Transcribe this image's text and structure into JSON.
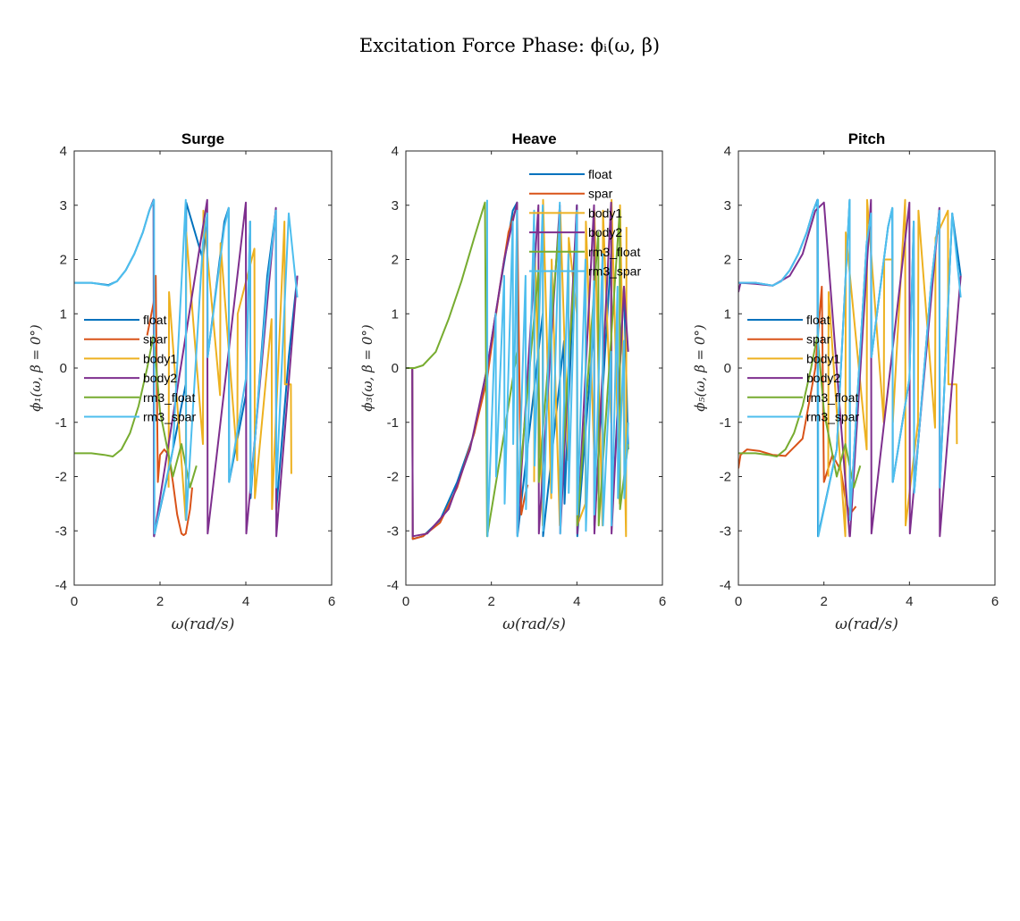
{
  "title": "Excitation Force Phase: ϕᵢ(ω, β)",
  "legend_entries": [
    "float",
    "spar",
    "body1",
    "body2",
    "rm3_float",
    "rm3_spar"
  ],
  "colors": {
    "float": "#0072BD",
    "spar": "#D95319",
    "body1": "#EDB120",
    "body2": "#7E2F8E",
    "rm3_float": "#77AC30",
    "rm3_spar": "#4DBEEE"
  },
  "chart_data": [
    {
      "type": "line",
      "title": "Surge",
      "xlabel": "ω(rad/s)",
      "ylabel": "ϕ₁(ω, β = 0°)",
      "xlim": [
        0,
        6
      ],
      "ylim": [
        -4,
        4
      ],
      "xticks": [
        "0",
        "2",
        "4",
        "6"
      ],
      "yticks": [
        "4",
        "3",
        "2",
        "1",
        "0",
        "-1",
        "-2",
        "-3",
        "-4"
      ],
      "legend_position": "west",
      "series": [
        {
          "name": "float",
          "x": [
            0,
            0.4,
            0.8,
            1.0,
            1.2,
            1.4,
            1.6,
            1.75,
            1.85,
            1.86,
            2.2,
            2.6,
            2.61,
            3.0,
            3.1,
            3.11,
            3.5,
            3.6,
            3.61,
            4.0,
            4.1,
            4.11,
            4.5,
            4.7,
            4.71,
            5.0,
            5.2
          ],
          "y": [
            1.57,
            1.57,
            1.53,
            1.6,
            1.8,
            2.1,
            2.5,
            2.9,
            3.1,
            -3.1,
            -1.9,
            -0.3,
            3.05,
            2.0,
            2.85,
            0.2,
            2.7,
            2.95,
            -2.1,
            -0.5,
            2.7,
            -2.4,
            1.7,
            2.9,
            -2.6,
            0.2,
            1.7
          ]
        },
        {
          "name": "spar",
          "x": [
            1.7,
            1.85,
            1.9,
            1.95,
            2.0,
            2.1,
            2.2,
            2.3,
            2.4,
            2.5,
            2.55,
            2.6,
            2.7,
            2.75
          ],
          "y": [
            0.6,
            1.2,
            1.7,
            -2.1,
            -1.6,
            -1.5,
            -1.6,
            -2.1,
            -2.7,
            -3.05,
            -3.08,
            -3.05,
            -2.6,
            -2.2
          ]
        },
        {
          "name": "body1",
          "x": [
            2.2,
            2.21,
            2.6,
            2.61,
            3.0,
            3.01,
            3.4,
            3.41,
            3.8,
            3.81,
            4.2,
            4.21,
            4.6,
            4.61,
            4.9,
            4.91,
            5.05,
            5.06
          ],
          "y": [
            -2.2,
            1.4,
            -2.8,
            2.5,
            -1.4,
            2.9,
            -0.5,
            2.3,
            -1.7,
            1.0,
            2.2,
            -2.4,
            0.9,
            -2.6,
            2.7,
            -0.3,
            -0.3,
            -1.95
          ]
        },
        {
          "name": "body2",
          "x": [
            1.8,
            1.85,
            1.86,
            3.1,
            3.11,
            4.0,
            4.01,
            4.7,
            4.71,
            5.2
          ],
          "y": [
            3.0,
            3.1,
            -3.1,
            3.1,
            -3.05,
            3.05,
            -3.05,
            2.95,
            -3.1,
            1.7
          ]
        },
        {
          "name": "rm3_float",
          "x": [
            0,
            0.4,
            0.7,
            0.9,
            1.1,
            1.3,
            1.5,
            1.7,
            1.85,
            2.0,
            2.3,
            2.5,
            2.7,
            2.85
          ],
          "y": [
            -1.57,
            -1.57,
            -1.6,
            -1.63,
            -1.5,
            -1.2,
            -0.7,
            0.0,
            0.6,
            -0.8,
            -2.0,
            -1.4,
            -2.2,
            -1.8
          ]
        },
        {
          "name": "rm3_spar",
          "x": [
            0,
            0.4,
            0.8,
            1.0,
            1.2,
            1.4,
            1.6,
            1.75,
            1.86,
            1.87,
            2.3,
            2.6,
            2.61,
            3.0,
            3.1,
            3.11,
            3.5,
            3.6,
            3.61,
            4.0,
            4.1,
            4.11,
            4.5,
            4.7,
            4.71,
            5.0,
            5.2
          ],
          "y": [
            1.57,
            1.57,
            1.52,
            1.6,
            1.8,
            2.1,
            2.5,
            2.9,
            3.1,
            -3.05,
            -1.5,
            3.1,
            -2.8,
            2.3,
            2.85,
            0.2,
            2.6,
            2.95,
            -2.1,
            -0.2,
            2.7,
            -2.3,
            1.5,
            2.9,
            -2.2,
            2.85,
            1.3
          ]
        }
      ]
    },
    {
      "type": "line",
      "title": "Heave",
      "xlabel": "ω(rad/s)",
      "ylabel": "ϕ₃(ω, β = 0°)",
      "xlim": [
        0,
        6
      ],
      "ylim": [
        -4,
        4
      ],
      "xticks": [
        "0",
        "2",
        "4",
        "6"
      ],
      "yticks": [
        "4",
        "3",
        "2",
        "1",
        "0",
        "-1",
        "-2",
        "-3",
        "-4"
      ],
      "legend_position": "north",
      "series": [
        {
          "name": "float",
          "x": [
            0,
            0.15,
            0.16,
            0.4,
            0.8,
            1.2,
            1.6,
            1.9,
            2.1,
            2.5,
            2.6,
            2.61,
            3.2,
            3.21,
            3.7,
            3.71,
            4.0,
            4.01,
            4.4,
            4.41,
            4.8,
            4.81,
            5.1,
            5.2
          ],
          "y": [
            0,
            0,
            -3.15,
            -3.1,
            -2.8,
            -2.1,
            -1.2,
            0.0,
            1.0,
            2.9,
            3.05,
            -3.1,
            1.0,
            -3.1,
            0.5,
            -2.5,
            3.0,
            -3.1,
            0.8,
            -2.9,
            2.1,
            -2.9,
            1.5,
            -1.5
          ]
        },
        {
          "name": "spar",
          "x": [
            0,
            0.15,
            0.16,
            0.4,
            0.8,
            1.2,
            1.6,
            1.9,
            2.2,
            2.4,
            2.6,
            2.7,
            2.8,
            2.85
          ],
          "y": [
            0,
            0,
            -3.15,
            -3.1,
            -2.85,
            -2.2,
            -1.2,
            -0.2,
            1.5,
            2.5,
            3.0,
            -2.7,
            -2.3,
            -2.15
          ]
        },
        {
          "name": "body1",
          "x": [
            3.0,
            3.01,
            3.2,
            3.21,
            3.4,
            3.41,
            3.6,
            3.61,
            3.8,
            3.81,
            4.0,
            4.01,
            4.2,
            4.21,
            4.4,
            4.41,
            4.6,
            4.61,
            4.8,
            4.81,
            5.0,
            5.01,
            5.15,
            5.16
          ],
          "y": [
            -2.1,
            2.3,
            -2.9,
            3.1,
            -2.4,
            2.0,
            -2.9,
            2.9,
            -1.7,
            2.4,
            1.0,
            -2.9,
            -2.5,
            2.7,
            -1.5,
            2.9,
            -2.9,
            2.9,
            -1.0,
            3.1,
            -2.5,
            3.0,
            -3.1,
            2.6
          ]
        },
        {
          "name": "body2",
          "x": [
            0,
            0.15,
            0.16,
            0.5,
            1.0,
            1.5,
            1.9,
            2.3,
            2.6,
            2.61,
            3.1,
            3.11,
            3.6,
            3.61,
            4.0,
            4.01,
            4.4,
            4.41,
            4.8,
            4.81,
            5.1,
            5.2
          ],
          "y": [
            0,
            0,
            -3.1,
            -3.05,
            -2.6,
            -1.5,
            0.0,
            2.0,
            3.05,
            -3.05,
            3.0,
            -3.05,
            3.0,
            -3.05,
            3.0,
            -3.05,
            3.0,
            -3.05,
            3.05,
            -3.05,
            1.5,
            0.3
          ]
        },
        {
          "name": "rm3_float",
          "x": [
            0,
            0.2,
            0.4,
            0.7,
            1.0,
            1.3,
            1.6,
            1.85,
            1.9,
            2.3,
            2.6,
            2.61,
            3.1,
            3.11,
            3.6,
            3.61,
            4.0,
            4.01,
            4.5,
            4.51,
            5.0,
            5.01,
            5.2
          ],
          "y": [
            0,
            0,
            0.05,
            0.3,
            0.9,
            1.6,
            2.4,
            3.05,
            -3.1,
            -1.2,
            0.3,
            -2.5,
            1.8,
            -2.1,
            2.8,
            -2.4,
            2.5,
            -2.9,
            2.5,
            -2.9,
            2.9,
            -2.6,
            -1.4
          ]
        },
        {
          "name": "rm3_spar",
          "x": [
            1.9,
            1.91,
            2.1,
            2.11,
            2.3,
            2.31,
            2.5,
            2.51,
            2.6,
            2.61,
            2.8,
            2.81,
            3.0,
            3.01,
            3.2,
            3.21,
            3.4,
            3.41,
            3.6,
            3.61,
            3.8,
            3.81,
            4.0,
            4.01,
            4.2,
            4.21,
            4.4,
            4.41,
            4.6,
            4.61,
            4.8,
            4.81,
            4.95,
            4.96,
            5.1,
            5.11,
            5.2
          ],
          "y": [
            3.1,
            -3.1,
            1.0,
            -2.0,
            1.7,
            -2.5,
            2.7,
            -1.4,
            2.9,
            -3.1,
            1.7,
            -2.6,
            2.9,
            -1.8,
            3.0,
            -3.0,
            1.8,
            -2.3,
            3.05,
            -3.05,
            2.1,
            -2.3,
            2.9,
            -2.7,
            2.0,
            -3.0,
            1.6,
            -2.7,
            2.1,
            -2.9,
            0.3,
            -2.9,
            1.5,
            -2.4,
            0.5,
            -2.4,
            -1.0
          ]
        }
      ]
    },
    {
      "type": "line",
      "title": "Pitch",
      "xlabel": "ω(rad/s)",
      "ylabel": "ϕ₅(ω, β = 0°)",
      "xlim": [
        0,
        6
      ],
      "ylim": [
        -4,
        4
      ],
      "xticks": [
        "0",
        "2",
        "4",
        "6"
      ],
      "yticks": [
        "4",
        "3",
        "2",
        "1",
        "0",
        "-1",
        "-2",
        "-3",
        "-4"
      ],
      "legend_position": "west",
      "series": [
        {
          "name": "float",
          "x": [
            0,
            0.4,
            0.8,
            1.0,
            1.2,
            1.4,
            1.6,
            1.75,
            1.85,
            1.86,
            2.3,
            2.6,
            2.61,
            3.0,
            3.1,
            3.11,
            3.5,
            3.6,
            3.61,
            4.0,
            4.1,
            4.11,
            4.5,
            4.7,
            4.71,
            5.0,
            5.2
          ],
          "y": [
            1.57,
            1.57,
            1.52,
            1.6,
            1.8,
            2.1,
            2.5,
            2.9,
            3.1,
            -3.1,
            -1.5,
            3.1,
            -2.8,
            2.3,
            2.85,
            0.2,
            2.6,
            2.95,
            -2.1,
            -0.2,
            2.7,
            -2.3,
            1.5,
            2.9,
            -2.2,
            2.85,
            1.7
          ]
        },
        {
          "name": "spar",
          "x": [
            0,
            0.05,
            0.2,
            0.5,
            0.8,
            1.1,
            1.5,
            1.8,
            1.95,
            2.0,
            2.2,
            2.4,
            2.5,
            2.6,
            2.75
          ],
          "y": [
            -1.85,
            -1.6,
            -1.5,
            -1.53,
            -1.6,
            -1.62,
            -1.3,
            0.0,
            1.5,
            -2.1,
            -1.6,
            -1.9,
            -2.4,
            -2.7,
            -2.55
          ]
        },
        {
          "name": "body1",
          "x": [
            2.1,
            2.11,
            2.5,
            2.51,
            3.0,
            3.01,
            3.4,
            3.41,
            3.6,
            3.61,
            3.9,
            3.91,
            4.2,
            4.21,
            4.6,
            4.61,
            4.9,
            4.91,
            5.1,
            5.11
          ],
          "y": [
            -2.0,
            1.4,
            -3.1,
            2.5,
            -1.5,
            3.1,
            -1.0,
            2.0,
            2.0,
            -1.0,
            3.1,
            -2.9,
            -1.0,
            2.9,
            -1.1,
            2.4,
            2.9,
            -0.3,
            -0.3,
            -1.4
          ]
        },
        {
          "name": "body2",
          "x": [
            0,
            0.05,
            0.4,
            0.8,
            1.2,
            1.5,
            1.8,
            2.0,
            2.6,
            2.61,
            3.1,
            3.11,
            4.0,
            4.01,
            4.7,
            4.71,
            5.2
          ],
          "y": [
            1.4,
            1.57,
            1.55,
            1.52,
            1.7,
            2.1,
            2.9,
            3.05,
            -3.1,
            -3.1,
            3.1,
            -3.05,
            3.05,
            -3.05,
            2.95,
            -3.1,
            1.7
          ]
        },
        {
          "name": "rm3_float",
          "x": [
            0,
            0.4,
            0.7,
            0.9,
            1.1,
            1.3,
            1.5,
            1.7,
            1.85,
            2.0,
            2.3,
            2.5,
            2.7,
            2.85
          ],
          "y": [
            -1.57,
            -1.57,
            -1.6,
            -1.63,
            -1.5,
            -1.2,
            -0.7,
            0.0,
            0.6,
            -0.8,
            -2.0,
            -1.4,
            -2.2,
            -1.8
          ]
        },
        {
          "name": "rm3_spar",
          "x": [
            0,
            0.4,
            0.8,
            1.0,
            1.2,
            1.4,
            1.6,
            1.75,
            1.86,
            1.87,
            2.3,
            2.6,
            2.61,
            3.0,
            3.1,
            3.11,
            3.5,
            3.6,
            3.61,
            4.0,
            4.1,
            4.11,
            4.5,
            4.7,
            4.71,
            5.0,
            5.2
          ],
          "y": [
            1.57,
            1.57,
            1.52,
            1.6,
            1.8,
            2.1,
            2.5,
            2.9,
            3.1,
            -3.1,
            -1.5,
            3.1,
            -2.8,
            2.3,
            2.85,
            0.2,
            2.6,
            2.95,
            -2.1,
            -0.2,
            2.7,
            -2.3,
            1.5,
            2.9,
            -2.2,
            2.85,
            1.3
          ]
        }
      ]
    }
  ]
}
